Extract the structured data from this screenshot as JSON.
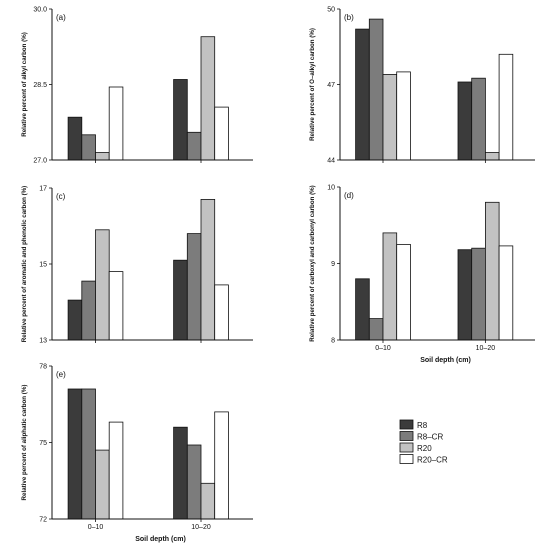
{
  "colors": {
    "R8": "#3b3b3b",
    "R8-CR": "#7c7c7c",
    "R20": "#c2c2c2",
    "R20-CR": "#ffffff",
    "stroke": "#111111"
  },
  "legend": {
    "entries": [
      "R8",
      "R8–CR",
      "R20",
      "R20–CR"
    ]
  },
  "chart_data": [
    {
      "type": "bar",
      "panel_label": "(a)",
      "ylabel": "Relative percent of alkyl carbon (%)",
      "xlabel": "",
      "categories": [
        "0–10",
        "10–20"
      ],
      "show_category_labels": false,
      "ylim": [
        27.0,
        30.0
      ],
      "yticks": [
        "27.0",
        "28.5",
        "30.0"
      ],
      "series": [
        {
          "name": "R8",
          "values": [
            27.85,
            28.6
          ]
        },
        {
          "name": "R8–CR",
          "values": [
            27.5,
            27.55
          ]
        },
        {
          "name": "R20",
          "values": [
            27.15,
            29.45
          ]
        },
        {
          "name": "R20–CR",
          "values": [
            28.45,
            28.05
          ]
        }
      ]
    },
    {
      "type": "bar",
      "panel_label": "(b)",
      "ylabel": "Relative percent of O–alkyl carbon (%)",
      "xlabel": "",
      "categories": [
        "0–10",
        "10–20"
      ],
      "show_category_labels": false,
      "ylim": [
        44,
        50
      ],
      "yticks": [
        "44",
        "47",
        "50"
      ],
      "series": [
        {
          "name": "R8",
          "values": [
            49.2,
            47.1
          ]
        },
        {
          "name": "R8–CR",
          "values": [
            49.6,
            47.25
          ]
        },
        {
          "name": "R20",
          "values": [
            47.4,
            44.3
          ]
        },
        {
          "name": "R20–CR",
          "values": [
            47.5,
            48.2
          ]
        }
      ]
    },
    {
      "type": "bar",
      "panel_label": "(c)",
      "ylabel": "Relative percent of aromatic and phenolic carbon (%)",
      "xlabel": "",
      "categories": [
        "0–10",
        "10–20"
      ],
      "show_category_labels": false,
      "ylim": [
        13,
        17
      ],
      "yticks": [
        "13",
        "15",
        "17"
      ],
      "series": [
        {
          "name": "R8",
          "values": [
            14.05,
            15.1
          ]
        },
        {
          "name": "R8–CR",
          "values": [
            14.55,
            15.8
          ]
        },
        {
          "name": "R20",
          "values": [
            15.9,
            16.7
          ]
        },
        {
          "name": "R20–CR",
          "values": [
            14.8,
            14.45
          ]
        }
      ]
    },
    {
      "type": "bar",
      "panel_label": "(d)",
      "ylabel": "Relative percent of carboxyl and carbonyl carbon (%)",
      "xlabel": "Soil depth (cm)",
      "categories": [
        "0–10",
        "10–20"
      ],
      "show_category_labels": true,
      "ylim": [
        8,
        10
      ],
      "yticks": [
        "8",
        "9",
        "10"
      ],
      "series": [
        {
          "name": "R8",
          "values": [
            8.8,
            9.18
          ]
        },
        {
          "name": "R8–CR",
          "values": [
            8.28,
            9.2
          ]
        },
        {
          "name": "R20",
          "values": [
            9.4,
            9.8
          ]
        },
        {
          "name": "R20–CR",
          "values": [
            9.25,
            9.23
          ]
        }
      ]
    },
    {
      "type": "bar",
      "panel_label": "(e)",
      "ylabel": "Relative percent of aliphatic carbon (%)",
      "xlabel": "Soil depth (cm)",
      "categories": [
        "0–10",
        "10–20"
      ],
      "show_category_labels": true,
      "ylim": [
        72,
        78
      ],
      "yticks": [
        "72",
        "75",
        "78"
      ],
      "series": [
        {
          "name": "R8",
          "values": [
            77.1,
            75.6
          ]
        },
        {
          "name": "R8–CR",
          "values": [
            77.1,
            74.9
          ]
        },
        {
          "name": "R20",
          "values": [
            74.7,
            73.4
          ]
        },
        {
          "name": "R20–CR",
          "values": [
            75.8,
            76.2
          ]
        }
      ]
    }
  ]
}
